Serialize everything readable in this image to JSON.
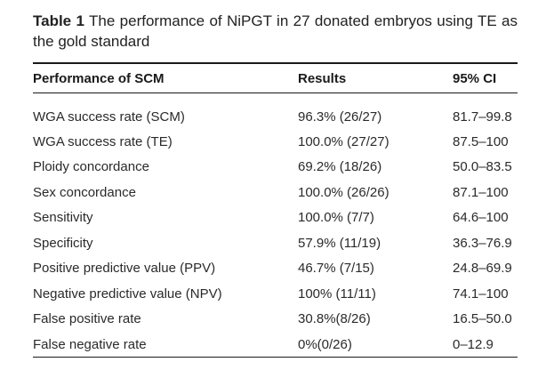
{
  "table": {
    "caption_label": "Table 1",
    "caption_text": "The performance of NiPGT in 27 donated embryos using TE as the gold standard",
    "headers": [
      "Performance of SCM",
      "Results",
      "95% CI"
    ],
    "rows": [
      [
        "WGA success rate (SCM)",
        "96.3% (26/27)",
        "81.7–99.8"
      ],
      [
        "WGA success rate (TE)",
        "100.0% (27/27)",
        "87.5–100"
      ],
      [
        "Ploidy concordance",
        "69.2% (18/26)",
        "50.0–83.5"
      ],
      [
        "Sex concordance",
        "100.0% (26/26)",
        "87.1–100"
      ],
      [
        "Sensitivity",
        "100.0% (7/7)",
        "64.6–100"
      ],
      [
        "Specificity",
        "57.9% (11/19)",
        "36.3–76.9"
      ],
      [
        "Positive predictive value (PPV)",
        "46.7% (7/15)",
        "24.8–69.9"
      ],
      [
        "Negative predictive value (NPV)",
        "100% (11/11)",
        "74.1–100"
      ],
      [
        "False positive rate",
        "30.8%(8/26)",
        "16.5–50.0"
      ],
      [
        "False negative rate",
        "0%(0/26)",
        "0–12.9"
      ]
    ]
  }
}
